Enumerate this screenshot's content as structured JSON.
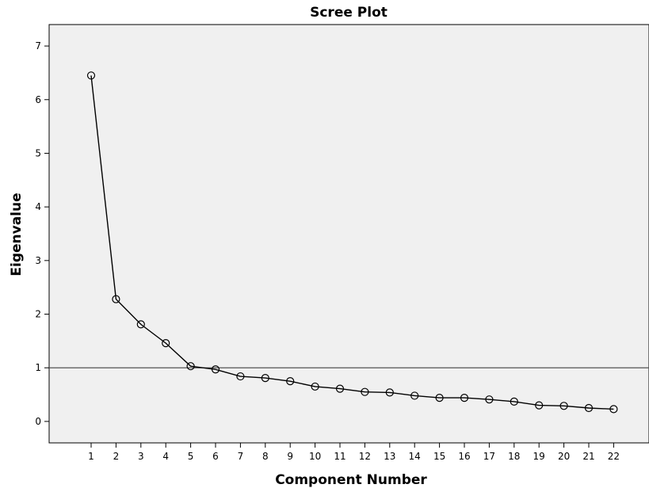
{
  "chart_data": {
    "type": "line",
    "title": "Scree Plot",
    "xlabel": "Component Number",
    "ylabel": "Eigenvalue",
    "categories": [
      "1",
      "2",
      "3",
      "4",
      "5",
      "6",
      "7",
      "8",
      "9",
      "10",
      "11",
      "12",
      "13",
      "14",
      "15",
      "16",
      "17",
      "18",
      "19",
      "20",
      "21",
      "22"
    ],
    "values": [
      6.45,
      2.28,
      1.81,
      1.46,
      1.03,
      0.97,
      0.84,
      0.81,
      0.75,
      0.65,
      0.61,
      0.55,
      0.54,
      0.48,
      0.44,
      0.44,
      0.41,
      0.37,
      0.3,
      0.29,
      0.25,
      0.23
    ],
    "ylim": [
      -0.4,
      7.4
    ],
    "yticks": [
      0,
      1,
      2,
      3,
      4,
      5,
      6,
      7
    ],
    "reference_line": 1,
    "grid": false,
    "legend": "none",
    "colors": {
      "plot_background": "#f0f0f0",
      "line": "#000000",
      "reference_line": "#555555"
    }
  }
}
